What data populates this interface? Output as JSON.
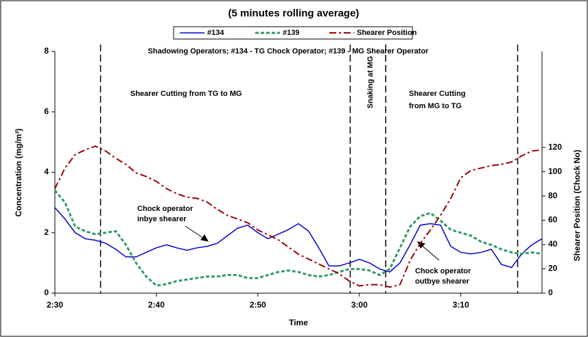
{
  "chart_data": {
    "type": "line",
    "title": "(5 minutes rolling average)",
    "xlabel": "Time",
    "ylabel": "Concentration (mg/m³)",
    "y2label": "Shearer Position (Chock No)",
    "x": [
      150,
      151,
      152,
      153,
      154,
      155,
      156,
      157,
      158,
      159,
      160,
      161,
      162,
      163,
      164,
      165,
      166,
      167,
      168,
      169,
      170,
      171,
      172,
      173,
      174,
      175,
      176,
      177,
      178,
      179,
      180,
      181,
      182,
      183,
      184,
      185,
      186,
      187,
      188,
      189,
      190,
      191,
      192,
      193,
      194,
      195,
      196,
      197,
      198
    ],
    "series": [
      {
        "name": "#134",
        "color": "#0000cc",
        "dash": "solid",
        "values": [
          2.83,
          2.45,
          2.0,
          1.8,
          1.75,
          1.65,
          1.45,
          1.2,
          1.2,
          1.35,
          1.5,
          1.6,
          1.5,
          1.42,
          1.5,
          1.55,
          1.65,
          1.9,
          2.15,
          2.25,
          2.0,
          1.8,
          1.95,
          2.1,
          2.3,
          2.05,
          1.5,
          0.9,
          0.9,
          1.0,
          1.12,
          1.0,
          0.8,
          0.7,
          1.0,
          1.6,
          2.25,
          2.3,
          2.25,
          1.55,
          1.35,
          1.3,
          1.35,
          1.45,
          0.95,
          0.85,
          1.3,
          1.6,
          1.8
        ]
      },
      {
        "name": "#139",
        "color": "#339966",
        "dash": "dotted",
        "values": [
          3.4,
          3.0,
          2.2,
          2.05,
          1.95,
          2.0,
          2.05,
          1.6,
          1.0,
          0.55,
          0.25,
          0.3,
          0.4,
          0.45,
          0.5,
          0.55,
          0.55,
          0.6,
          0.6,
          0.5,
          0.5,
          0.6,
          0.7,
          0.75,
          0.7,
          0.6,
          0.55,
          0.6,
          0.7,
          0.8,
          0.8,
          0.75,
          0.6,
          0.8,
          1.5,
          2.2,
          2.55,
          2.65,
          2.4,
          2.1,
          2.0,
          1.9,
          1.7,
          1.6,
          1.45,
          1.35,
          1.3,
          1.35,
          1.3
        ]
      },
      {
        "name": "Shearer Position",
        "color": "#990000",
        "dash": "dashdot",
        "axis": "y2",
        "values": [
          86,
          103,
          114,
          118,
          121,
          117,
          111,
          106,
          99,
          96,
          92,
          86,
          82,
          79,
          78,
          75,
          69,
          64,
          61,
          58,
          52,
          48,
          44,
          38,
          32,
          28,
          24,
          20,
          16,
          10,
          6,
          7,
          7,
          5,
          7,
          27,
          41,
          52,
          64,
          78,
          95,
          101,
          103,
          105,
          106,
          108,
          113,
          117,
          118
        ]
      }
    ],
    "xlim": [
      150,
      198
    ],
    "xticks": [
      {
        "value": 150,
        "label": "2:30"
      },
      {
        "value": 160,
        "label": "2:40"
      },
      {
        "value": 170,
        "label": "2:50"
      },
      {
        "value": 180,
        "label": "3:00"
      },
      {
        "value": 190,
        "label": "3:10"
      }
    ],
    "ylim": [
      0,
      8
    ],
    "yticks": [
      0,
      2,
      4,
      6,
      8
    ],
    "y2lim": [
      0,
      199
    ],
    "y2ticks": [
      0,
      20,
      40,
      60,
      80,
      100,
      120
    ],
    "event_lines": [
      154.5,
      179.1,
      182.6,
      195.6
    ],
    "annotations": [
      "Shadowing Operators; #134 - TG Chock Operator; #139 - MG Shearer Operator",
      "Shearer Cutting from TG to MG",
      "Snaking at MG",
      "Shearer Cutting",
      "from MG to TG",
      "Chock operator",
      "inbye shearer",
      "Chock operator",
      "outbye shearer"
    ],
    "legend": "top"
  }
}
